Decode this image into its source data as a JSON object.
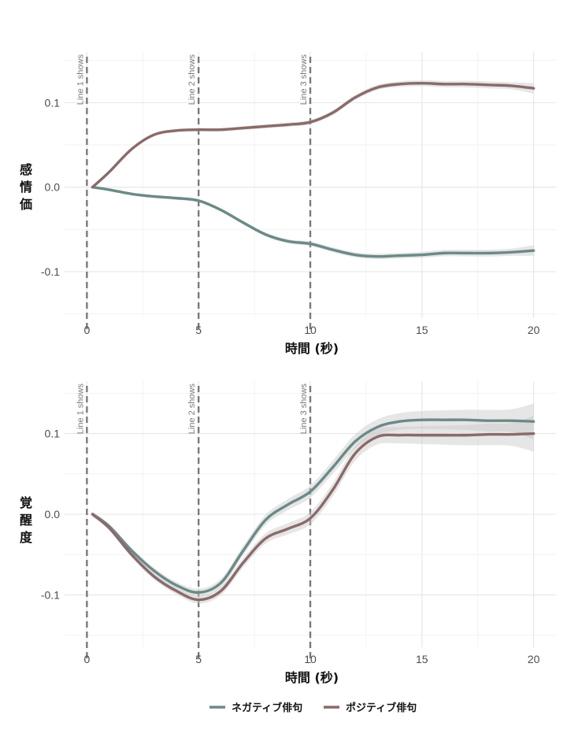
{
  "chart_data": [
    {
      "type": "line",
      "xlabel": "時間 (秒)",
      "ylabel": "感情価",
      "xlim": [
        -1,
        21
      ],
      "ylim": [
        -0.155,
        0.16
      ],
      "xticks": [
        0,
        5,
        10,
        15,
        20
      ],
      "xtick_labels": [
        "0",
        "5",
        "10",
        "15",
        "20"
      ],
      "yticks": [
        -0.1,
        0.0,
        0.1
      ],
      "ytick_labels": [
        "-0.1",
        "0.0",
        "0.1"
      ],
      "grid": true,
      "vlines": [
        {
          "x": 0,
          "label": "Line 1 shows"
        },
        {
          "x": 5,
          "label": "Line 2 shows"
        },
        {
          "x": 10,
          "label": "Line 3 shows"
        }
      ],
      "series": [
        {
          "name": "ネガティブ俳句",
          "color": "#6b8a87",
          "x": [
            0.25,
            1,
            2,
            3,
            4,
            5,
            6,
            7,
            8,
            9,
            10,
            11,
            12,
            13,
            14,
            15,
            16,
            17,
            18,
            19,
            20
          ],
          "y": [
            0.0,
            -0.003,
            -0.008,
            -0.011,
            -0.013,
            -0.016,
            -0.027,
            -0.042,
            -0.056,
            -0.064,
            -0.067,
            -0.074,
            -0.08,
            -0.082,
            -0.081,
            -0.08,
            -0.078,
            -0.078,
            -0.078,
            -0.077,
            -0.075
          ]
        },
        {
          "name": "ポジティブ俳句",
          "color": "#8a6a6a",
          "x": [
            0.25,
            1,
            2,
            3,
            4,
            5,
            6,
            7,
            8,
            9,
            10,
            11,
            12,
            13,
            14,
            15,
            16,
            17,
            18,
            19,
            20
          ],
          "y": [
            0.0,
            0.018,
            0.045,
            0.062,
            0.067,
            0.068,
            0.068,
            0.07,
            0.072,
            0.074,
            0.077,
            0.088,
            0.106,
            0.118,
            0.122,
            0.123,
            0.122,
            0.122,
            0.121,
            0.12,
            0.117
          ]
        }
      ]
    },
    {
      "type": "line",
      "xlabel": "時間 (秒)",
      "ylabel": "覚醒度",
      "xlim": [
        -1,
        21
      ],
      "ylim": [
        -0.165,
        0.165
      ],
      "xticks": [
        0,
        5,
        10,
        15,
        20
      ],
      "xtick_labels": [
        "0",
        "5",
        "10",
        "15",
        "20"
      ],
      "yticks": [
        -0.1,
        0.0,
        0.1
      ],
      "ytick_labels": [
        "-0.1",
        "0.0",
        "0.1"
      ],
      "grid": true,
      "vlines": [
        {
          "x": 0,
          "label": "Line 1 shows"
        },
        {
          "x": 5,
          "label": "Line 2 shows"
        },
        {
          "x": 10,
          "label": "Line 3 shows"
        }
      ],
      "series": [
        {
          "name": "ネガティブ俳句",
          "color": "#6b8a87",
          "x": [
            0.25,
            1,
            2,
            3,
            4,
            5,
            6,
            7,
            8,
            9,
            10,
            11,
            12,
            13,
            14,
            15,
            16,
            17,
            18,
            19,
            20
          ],
          "y": [
            0.0,
            -0.015,
            -0.045,
            -0.07,
            -0.088,
            -0.097,
            -0.085,
            -0.045,
            -0.007,
            0.012,
            0.028,
            0.058,
            0.09,
            0.108,
            0.115,
            0.117,
            0.117,
            0.117,
            0.116,
            0.116,
            0.115
          ]
        },
        {
          "name": "ポジティブ俳句",
          "color": "#8a6a6a",
          "x": [
            0.25,
            1,
            2,
            3,
            4,
            5,
            6,
            7,
            8,
            9,
            10,
            11,
            12,
            13,
            14,
            15,
            16,
            17,
            18,
            19,
            20
          ],
          "y": [
            0.0,
            -0.017,
            -0.05,
            -0.077,
            -0.095,
            -0.106,
            -0.095,
            -0.06,
            -0.03,
            -0.018,
            -0.005,
            0.03,
            0.075,
            0.096,
            0.098,
            0.098,
            0.098,
            0.098,
            0.099,
            0.099,
            0.1
          ]
        }
      ]
    }
  ],
  "legend": {
    "position": "bottom",
    "items": [
      {
        "label": "ネガティブ俳句",
        "color": "#6b8a87"
      },
      {
        "label": "ポジティブ俳句",
        "color": "#8a6a6a"
      }
    ]
  }
}
